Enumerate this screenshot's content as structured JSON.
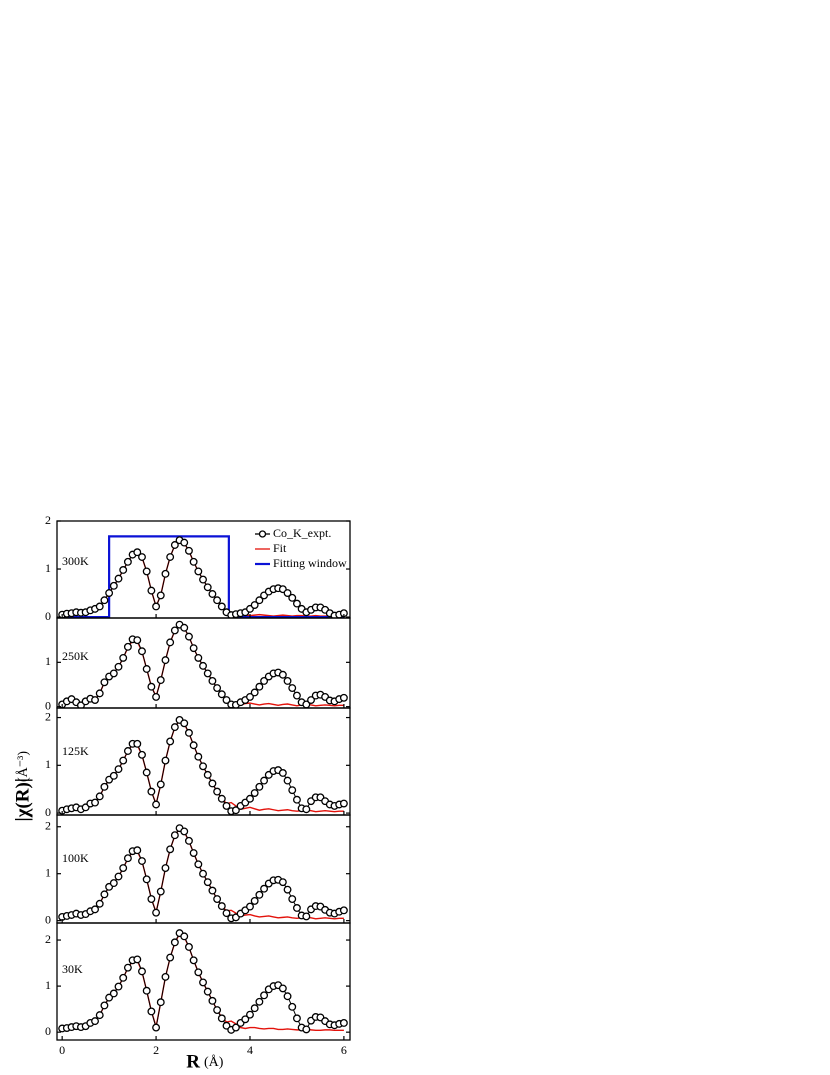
{
  "chart_data": [
    {
      "type": "line",
      "label": "300K",
      "xlim": [
        -0.11,
        6.13
      ],
      "xticks": [
        0,
        2,
        4,
        6
      ],
      "xtick_labels": false,
      "ylim": [
        -0.02,
        2.0
      ],
      "yticks": [
        0,
        1,
        2
      ],
      "x": [
        0,
        0.1,
        0.2,
        0.3,
        0.4,
        0.5,
        0.6,
        0.7,
        0.8,
        0.9,
        1.0,
        1.1,
        1.2,
        1.3,
        1.4,
        1.5,
        1.6,
        1.7,
        1.8,
        1.9,
        2.0,
        2.1,
        2.2,
        2.3,
        2.4,
        2.5,
        2.6,
        2.7,
        2.8,
        2.9,
        3.0,
        3.1,
        3.2,
        3.3,
        3.4,
        3.5,
        3.6,
        3.7,
        3.8,
        3.9,
        4.0,
        4.1,
        4.2,
        4.3,
        4.4,
        4.5,
        4.6,
        4.7,
        4.8,
        4.9,
        5.0,
        5.1,
        5.2,
        5.3,
        5.4,
        5.5,
        5.6,
        5.7,
        5.8,
        5.9,
        6.0
      ],
      "series": [
        {
          "name": "Co_K_expt.",
          "color": "#000000",
          "marker": "circle",
          "values": [
            0.05,
            0.07,
            0.08,
            0.1,
            0.09,
            0.1,
            0.14,
            0.17,
            0.22,
            0.35,
            0.5,
            0.65,
            0.8,
            0.98,
            1.15,
            1.3,
            1.35,
            1.25,
            0.95,
            0.55,
            0.22,
            0.45,
            0.9,
            1.25,
            1.5,
            1.6,
            1.55,
            1.38,
            1.15,
            0.95,
            0.78,
            0.62,
            0.48,
            0.35,
            0.22,
            0.1,
            0.04,
            0.06,
            0.08,
            0.1,
            0.17,
            0.25,
            0.35,
            0.45,
            0.53,
            0.58,
            0.6,
            0.58,
            0.5,
            0.4,
            0.28,
            0.17,
            0.1,
            0.15,
            0.2,
            0.2,
            0.15,
            0.08,
            0.03,
            0.05,
            0.08
          ]
        },
        {
          "name": "Fit",
          "color": "#e3120b",
          "values": [
            0.05,
            0.07,
            0.08,
            0.1,
            0.09,
            0.1,
            0.14,
            0.17,
            0.22,
            0.35,
            0.5,
            0.65,
            0.8,
            0.98,
            1.15,
            1.3,
            1.34,
            1.24,
            0.95,
            0.55,
            0.22,
            0.46,
            0.9,
            1.25,
            1.5,
            1.59,
            1.54,
            1.37,
            1.15,
            0.95,
            0.78,
            0.62,
            0.48,
            0.34,
            0.22,
            0.12,
            0.1,
            0.08,
            0.06,
            0.04,
            0.03,
            0.04,
            0.05,
            0.04,
            0.03,
            0.02,
            0.03,
            0.04,
            0.03,
            0.02,
            0.03,
            0.03,
            0.02,
            0.02,
            0.03,
            0.02,
            0.02,
            0.02,
            0.02,
            0.02,
            0.02
          ]
        },
        {
          "name": "Fitting window",
          "color": "#0b12d6",
          "x": [
            0,
            1.0,
            1.0,
            3.55,
            3.55,
            6.0
          ],
          "values": [
            0,
            0,
            1.68,
            1.68,
            0,
            0
          ]
        }
      ]
    },
    {
      "type": "line",
      "label": "250K",
      "xlim": [
        -0.11,
        6.13
      ],
      "xticks": [
        0,
        2,
        4,
        6
      ],
      "xtick_labels": false,
      "ylim": [
        -0.03,
        2.0
      ],
      "yticks": [
        0,
        1
      ],
      "x": [
        0,
        0.1,
        0.2,
        0.3,
        0.4,
        0.5,
        0.6,
        0.7,
        0.8,
        0.9,
        1.0,
        1.1,
        1.2,
        1.3,
        1.4,
        1.5,
        1.6,
        1.7,
        1.8,
        1.9,
        2.0,
        2.1,
        2.2,
        2.3,
        2.4,
        2.5,
        2.6,
        2.7,
        2.8,
        2.9,
        3.0,
        3.1,
        3.2,
        3.3,
        3.4,
        3.5,
        3.6,
        3.7,
        3.8,
        3.9,
        4.0,
        4.1,
        4.2,
        4.3,
        4.4,
        4.5,
        4.6,
        4.7,
        4.8,
        4.9,
        5.0,
        5.1,
        5.2,
        5.3,
        5.4,
        5.5,
        5.6,
        5.7,
        5.8,
        5.9,
        6.0
      ],
      "series": [
        {
          "color": "#000000",
          "marker": "circle",
          "values": [
            0.05,
            0.12,
            0.17,
            0.1,
            0.03,
            0.12,
            0.18,
            0.15,
            0.3,
            0.55,
            0.68,
            0.75,
            0.9,
            1.1,
            1.35,
            1.52,
            1.5,
            1.25,
            0.85,
            0.45,
            0.22,
            0.6,
            1.05,
            1.45,
            1.72,
            1.85,
            1.78,
            1.58,
            1.32,
            1.1,
            0.92,
            0.75,
            0.58,
            0.42,
            0.28,
            0.15,
            0.05,
            0.04,
            0.1,
            0.15,
            0.22,
            0.32,
            0.45,
            0.58,
            0.68,
            0.75,
            0.77,
            0.72,
            0.58,
            0.42,
            0.25,
            0.1,
            0.05,
            0.15,
            0.25,
            0.27,
            0.22,
            0.14,
            0.12,
            0.17,
            0.2
          ]
        },
        {
          "color": "#e3120b",
          "values": [
            0.05,
            0.12,
            0.16,
            0.1,
            0.04,
            0.12,
            0.18,
            0.16,
            0.3,
            0.55,
            0.68,
            0.76,
            0.9,
            1.1,
            1.33,
            1.49,
            1.47,
            1.24,
            0.85,
            0.46,
            0.23,
            0.6,
            1.05,
            1.45,
            1.71,
            1.84,
            1.77,
            1.58,
            1.32,
            1.1,
            0.92,
            0.75,
            0.58,
            0.42,
            0.28,
            0.13,
            0.1,
            0.03,
            0.04,
            0.07,
            0.08,
            0.06,
            0.04,
            0.06,
            0.07,
            0.05,
            0.03,
            0.05,
            0.06,
            0.04,
            0.02,
            0.04,
            0.05,
            0.04,
            0.02,
            0.03,
            0.04,
            0.03,
            0.02,
            0.03,
            0.03
          ]
        }
      ]
    },
    {
      "type": "line",
      "label": "125K",
      "xlim": [
        -0.11,
        6.13
      ],
      "xticks": [
        0,
        2,
        4,
        6
      ],
      "xtick_labels": false,
      "ylim": [
        -0.04,
        2.2
      ],
      "yticks": [
        0,
        1,
        2
      ],
      "x": [
        0,
        0.1,
        0.2,
        0.3,
        0.4,
        0.5,
        0.6,
        0.7,
        0.8,
        0.9,
        1.0,
        1.1,
        1.2,
        1.3,
        1.4,
        1.5,
        1.6,
        1.7,
        1.8,
        1.9,
        2.0,
        2.1,
        2.2,
        2.3,
        2.4,
        2.5,
        2.6,
        2.7,
        2.8,
        2.9,
        3.0,
        3.1,
        3.2,
        3.3,
        3.4,
        3.5,
        3.6,
        3.7,
        3.8,
        3.9,
        4.0,
        4.1,
        4.2,
        4.3,
        4.4,
        4.5,
        4.6,
        4.7,
        4.8,
        4.9,
        5.0,
        5.1,
        5.2,
        5.3,
        5.4,
        5.5,
        5.6,
        5.7,
        5.8,
        5.9,
        6.0
      ],
      "series": [
        {
          "color": "#000000",
          "marker": "circle",
          "values": [
            0.05,
            0.08,
            0.1,
            0.12,
            0.08,
            0.12,
            0.2,
            0.22,
            0.35,
            0.55,
            0.7,
            0.78,
            0.92,
            1.1,
            1.3,
            1.45,
            1.45,
            1.22,
            0.85,
            0.45,
            0.18,
            0.6,
            1.1,
            1.5,
            1.8,
            1.95,
            1.88,
            1.68,
            1.42,
            1.18,
            0.98,
            0.8,
            0.62,
            0.45,
            0.3,
            0.15,
            0.04,
            0.06,
            0.15,
            0.22,
            0.3,
            0.42,
            0.55,
            0.68,
            0.8,
            0.88,
            0.9,
            0.84,
            0.68,
            0.48,
            0.28,
            0.1,
            0.08,
            0.25,
            0.33,
            0.33,
            0.25,
            0.18,
            0.15,
            0.18,
            0.2
          ]
        },
        {
          "color": "#e3120b",
          "values": [
            0.05,
            0.08,
            0.1,
            0.11,
            0.09,
            0.12,
            0.19,
            0.22,
            0.35,
            0.55,
            0.7,
            0.79,
            0.92,
            1.1,
            1.3,
            1.43,
            1.43,
            1.21,
            0.85,
            0.46,
            0.19,
            0.6,
            1.1,
            1.5,
            1.79,
            1.94,
            1.87,
            1.67,
            1.42,
            1.18,
            0.98,
            0.8,
            0.62,
            0.45,
            0.3,
            0.2,
            0.22,
            0.15,
            0.08,
            0.1,
            0.12,
            0.09,
            0.06,
            0.08,
            0.09,
            0.07,
            0.05,
            0.06,
            0.07,
            0.05,
            0.04,
            0.05,
            0.06,
            0.05,
            0.03,
            0.04,
            0.05,
            0.04,
            0.03,
            0.04,
            0.04
          ]
        }
      ]
    },
    {
      "type": "line",
      "label": "100K",
      "xlim": [
        -0.11,
        6.13
      ],
      "xticks": [
        0,
        2,
        4,
        6
      ],
      "xtick_labels": false,
      "ylim": [
        -0.05,
        2.25
      ],
      "yticks": [
        0,
        1,
        2
      ],
      "x": [
        0,
        0.1,
        0.2,
        0.3,
        0.4,
        0.5,
        0.6,
        0.7,
        0.8,
        0.9,
        1.0,
        1.1,
        1.2,
        1.3,
        1.4,
        1.5,
        1.6,
        1.7,
        1.8,
        1.9,
        2.0,
        2.1,
        2.2,
        2.3,
        2.4,
        2.5,
        2.6,
        2.7,
        2.8,
        2.9,
        3.0,
        3.1,
        3.2,
        3.3,
        3.4,
        3.5,
        3.6,
        3.7,
        3.8,
        3.9,
        4.0,
        4.1,
        4.2,
        4.3,
        4.4,
        4.5,
        4.6,
        4.7,
        4.8,
        4.9,
        5.0,
        5.1,
        5.2,
        5.3,
        5.4,
        5.5,
        5.6,
        5.7,
        5.8,
        5.9,
        6.0
      ],
      "series": [
        {
          "color": "#000000",
          "marker": "circle",
          "values": [
            0.08,
            0.1,
            0.12,
            0.15,
            0.12,
            0.14,
            0.2,
            0.24,
            0.36,
            0.56,
            0.72,
            0.8,
            0.94,
            1.12,
            1.33,
            1.48,
            1.5,
            1.27,
            0.88,
            0.46,
            0.17,
            0.62,
            1.12,
            1.52,
            1.82,
            1.97,
            1.9,
            1.7,
            1.44,
            1.2,
            1.0,
            0.82,
            0.64,
            0.46,
            0.31,
            0.16,
            0.05,
            0.07,
            0.15,
            0.22,
            0.3,
            0.42,
            0.55,
            0.68,
            0.79,
            0.86,
            0.87,
            0.82,
            0.66,
            0.46,
            0.27,
            0.11,
            0.09,
            0.24,
            0.31,
            0.3,
            0.23,
            0.17,
            0.15,
            0.19,
            0.22
          ]
        },
        {
          "color": "#e3120b",
          "values": [
            0.08,
            0.1,
            0.12,
            0.14,
            0.13,
            0.14,
            0.2,
            0.24,
            0.36,
            0.56,
            0.72,
            0.81,
            0.94,
            1.12,
            1.32,
            1.46,
            1.48,
            1.26,
            0.88,
            0.47,
            0.18,
            0.62,
            1.12,
            1.52,
            1.81,
            1.96,
            1.89,
            1.69,
            1.44,
            1.2,
            1.0,
            0.82,
            0.64,
            0.46,
            0.31,
            0.21,
            0.22,
            0.16,
            0.1,
            0.12,
            0.13,
            0.1,
            0.08,
            0.09,
            0.1,
            0.08,
            0.06,
            0.07,
            0.08,
            0.06,
            0.05,
            0.06,
            0.07,
            0.06,
            0.04,
            0.05,
            0.06,
            0.05,
            0.04,
            0.05,
            0.05
          ]
        }
      ]
    },
    {
      "type": "line",
      "label": "30K",
      "xlim": [
        -0.11,
        6.13
      ],
      "xticks": [
        0,
        2,
        4,
        6
      ],
      "xtick_labels": true,
      "ylim": [
        -0.17,
        2.37
      ],
      "yticks": [
        0,
        1,
        2
      ],
      "x": [
        0,
        0.1,
        0.2,
        0.3,
        0.4,
        0.5,
        0.6,
        0.7,
        0.8,
        0.9,
        1.0,
        1.1,
        1.2,
        1.3,
        1.4,
        1.5,
        1.6,
        1.7,
        1.8,
        1.9,
        2.0,
        2.1,
        2.2,
        2.3,
        2.4,
        2.5,
        2.6,
        2.7,
        2.8,
        2.9,
        3.0,
        3.1,
        3.2,
        3.3,
        3.4,
        3.5,
        3.6,
        3.7,
        3.8,
        3.9,
        4.0,
        4.1,
        4.2,
        4.3,
        4.4,
        4.5,
        4.6,
        4.7,
        4.8,
        4.9,
        5.0,
        5.1,
        5.2,
        5.3,
        5.4,
        5.5,
        5.6,
        5.7,
        5.8,
        5.9,
        6.0
      ],
      "series": [
        {
          "color": "#000000",
          "marker": "circle",
          "values": [
            0.08,
            0.09,
            0.11,
            0.13,
            0.11,
            0.13,
            0.2,
            0.24,
            0.37,
            0.58,
            0.75,
            0.84,
            0.99,
            1.18,
            1.4,
            1.56,
            1.58,
            1.32,
            0.9,
            0.45,
            0.1,
            0.65,
            1.2,
            1.62,
            1.95,
            2.15,
            2.08,
            1.85,
            1.56,
            1.3,
            1.08,
            0.88,
            0.68,
            0.48,
            0.3,
            0.14,
            0.05,
            0.1,
            0.2,
            0.28,
            0.38,
            0.52,
            0.66,
            0.8,
            0.93,
            1.0,
            1.02,
            0.95,
            0.78,
            0.55,
            0.3,
            0.1,
            0.06,
            0.25,
            0.33,
            0.32,
            0.24,
            0.17,
            0.15,
            0.18,
            0.2
          ]
        },
        {
          "color": "#e3120b",
          "values": [
            0.08,
            0.09,
            0.11,
            0.12,
            0.12,
            0.13,
            0.2,
            0.24,
            0.37,
            0.58,
            0.75,
            0.85,
            0.99,
            1.18,
            1.39,
            1.54,
            1.56,
            1.31,
            0.9,
            0.46,
            0.12,
            0.65,
            1.2,
            1.62,
            1.94,
            2.13,
            2.07,
            1.84,
            1.56,
            1.3,
            1.08,
            0.88,
            0.68,
            0.48,
            0.32,
            0.22,
            0.24,
            0.18,
            0.1,
            0.08,
            0.1,
            0.1,
            0.08,
            0.07,
            0.08,
            0.08,
            0.06,
            0.06,
            0.07,
            0.06,
            0.05,
            0.05,
            0.06,
            0.05,
            0.04,
            0.04,
            0.05,
            0.05,
            0.04,
            0.04,
            0.04
          ]
        }
      ]
    }
  ],
  "ylabel": "|χ(R)|",
  "ylabel_unit": "(Å⁻³)",
  "xlabel": "R",
  "xlabel_unit": "(Å)"
}
